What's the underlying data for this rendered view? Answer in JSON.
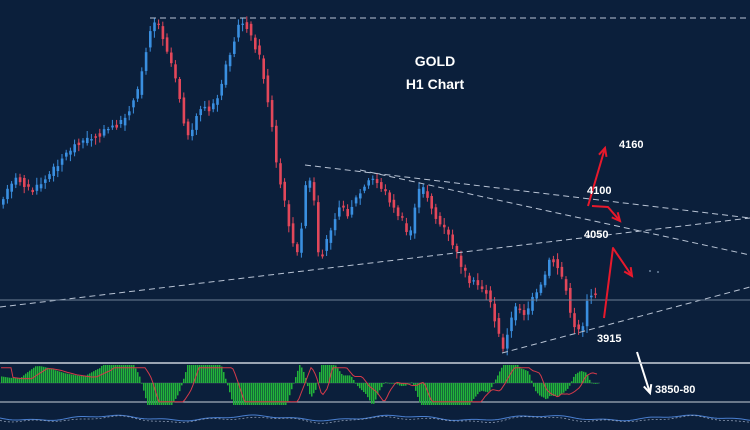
{
  "colors": {
    "background": "#0b1f3b",
    "bull_candle": "#3a8fe0",
    "bear_candle": "#e2475a",
    "trendline": "#b8c3d4",
    "projection_arrow": "#e8192c",
    "target_arrow": "#ffffff",
    "histogram": "#22b33a",
    "signal_line": "#d43a4a",
    "panel_border": "#c9d0da"
  },
  "chart_data": {
    "type": "candlestick",
    "title": "GOLD",
    "subtitle": "H1 Chart",
    "price_levels": [
      {
        "id": "4160",
        "text": "4160",
        "price": 4160
      },
      {
        "id": "4100",
        "text": "4100",
        "price": 4100
      },
      {
        "id": "4050",
        "text": "4050",
        "price": 4050
      },
      {
        "id": "3915",
        "text": "3915",
        "price": 3915
      },
      {
        "id": "3850",
        "text": "3850-80",
        "price_range": [
          3850,
          3880
        ]
      }
    ],
    "trendlines": [
      {
        "name": "resistance-top",
        "style": "dashed"
      },
      {
        "name": "long-support",
        "style": "dashed"
      },
      {
        "name": "descending-resistance-a",
        "style": "dashed"
      },
      {
        "name": "descending-resistance-b",
        "style": "dashed"
      },
      {
        "name": "channel-support",
        "style": "dashed"
      }
    ],
    "indicator": "histogram oscillator",
    "grid": false,
    "legend": "none"
  }
}
